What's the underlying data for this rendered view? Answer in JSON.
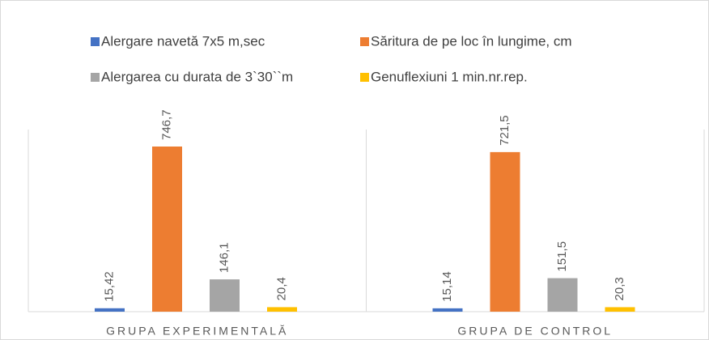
{
  "chart_data": {
    "type": "bar",
    "categories": [
      "GRUPA EXPERIMENTALĂ",
      "GRUPA DE CONTROL"
    ],
    "series": [
      {
        "name": "Alergare navetă 7x5 m,sec",
        "color": "#4472c4",
        "values": [
          15.42,
          15.14
        ],
        "value_labels": [
          "15,42",
          "15,14"
        ]
      },
      {
        "name": "Săritura de pe loc în lungime, cm",
        "color": "#ed7d31",
        "values": [
          746.7,
          721.5
        ],
        "value_labels": [
          "746,7",
          "721,5"
        ]
      },
      {
        "name": "Alergarea cu durata de 3`30``m",
        "color": "#a5a5a5",
        "values": [
          146.1,
          151.5
        ],
        "value_labels": [
          "146,1",
          "151,5"
        ]
      },
      {
        "name": "Genuflexiuni  1 min.nr.rep.",
        "color": "#ffc000",
        "values": [
          20.4,
          20.3
        ],
        "value_labels": [
          "20,4",
          "20,3"
        ]
      }
    ]
  }
}
